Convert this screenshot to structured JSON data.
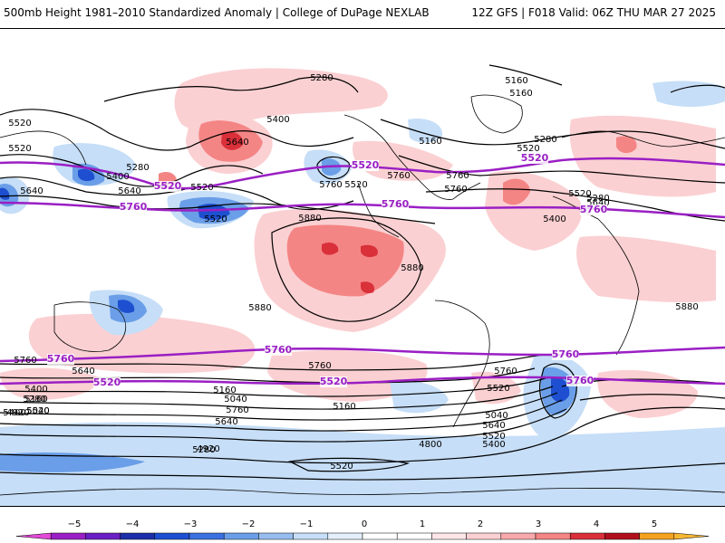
{
  "header": {
    "title_left": "500mb Height 1981–2010 Standardized Anomaly | College of DuPage NEXLAB",
    "title_right": "12Z GFS | F018 Valid: 06Z THU MAR 27 2025"
  },
  "map": {
    "contour_labels": [
      "5280",
      "5160",
      "5160",
      "5520",
      "5400",
      "5160",
      "5280",
      "5520",
      "5640",
      "5520",
      "5280",
      "5400",
      "5520",
      "5640",
      "5520",
      "5760",
      "5760",
      "5760",
      "5760",
      "5640",
      "5520",
      "5400",
      "5640",
      "5880",
      "5880",
      "5880",
      "5880",
      "5760",
      "5760",
      "5760",
      "5640",
      "5520",
      "5400",
      "5280",
      "5160",
      "5040",
      "5760",
      "5640",
      "5520",
      "5400",
      "5280",
      "5160",
      "5040",
      "5640",
      "5520",
      "5400",
      "5280",
      "5160",
      "5040",
      "4920",
      "4920",
      "4800",
      "5520",
      "5520"
    ],
    "purple_labels": [
      "5520",
      "5520",
      "5520",
      "5520",
      "5760",
      "5760",
      "5760",
      "5760",
      "5760",
      "5520",
      "5760",
      "5520",
      "5760"
    ],
    "colors": {
      "purple": "#9a1fc4",
      "red_light": "#fbd0d2",
      "red_mid": "#f48585",
      "red_dark": "#d9303a",
      "blue_light": "#c6def7",
      "blue_mid": "#6a9ee8",
      "blue_dark": "#1d4fd0"
    }
  },
  "legend": {
    "ticks": [
      "−5",
      "−4",
      "−3",
      "−2",
      "−1",
      "0",
      "1",
      "2",
      "3",
      "4",
      "5"
    ],
    "bins": [
      {
        "value": -5.0,
        "color": "#e24ad6"
      },
      {
        "value": -4.5,
        "color": "#9a1fc4"
      },
      {
        "value": -4.0,
        "color": "#6a1fc4"
      },
      {
        "value": -3.5,
        "color": "#1d2fa8"
      },
      {
        "value": -3.0,
        "color": "#1d4fd0"
      },
      {
        "value": -2.5,
        "color": "#3a70e0"
      },
      {
        "value": -2.0,
        "color": "#6a9ee8"
      },
      {
        "value": -1.5,
        "color": "#97bdf0"
      },
      {
        "value": -1.0,
        "color": "#c6def7"
      },
      {
        "value": -0.5,
        "color": "#e4effb"
      },
      {
        "value": 0.0,
        "color": "#ffffff"
      },
      {
        "value": 0.5,
        "color": "#ffffff"
      },
      {
        "value": 1.0,
        "color": "#fde6e7"
      },
      {
        "value": 1.5,
        "color": "#fbd0d2"
      },
      {
        "value": 2.0,
        "color": "#f7a9ac"
      },
      {
        "value": 2.5,
        "color": "#f48585"
      },
      {
        "value": 3.0,
        "color": "#d9303a"
      },
      {
        "value": 3.5,
        "color": "#b0101c"
      },
      {
        "value": 4.0,
        "color": "#f4a21f"
      },
      {
        "value": 4.5,
        "color": "#f7b733"
      }
    ]
  }
}
